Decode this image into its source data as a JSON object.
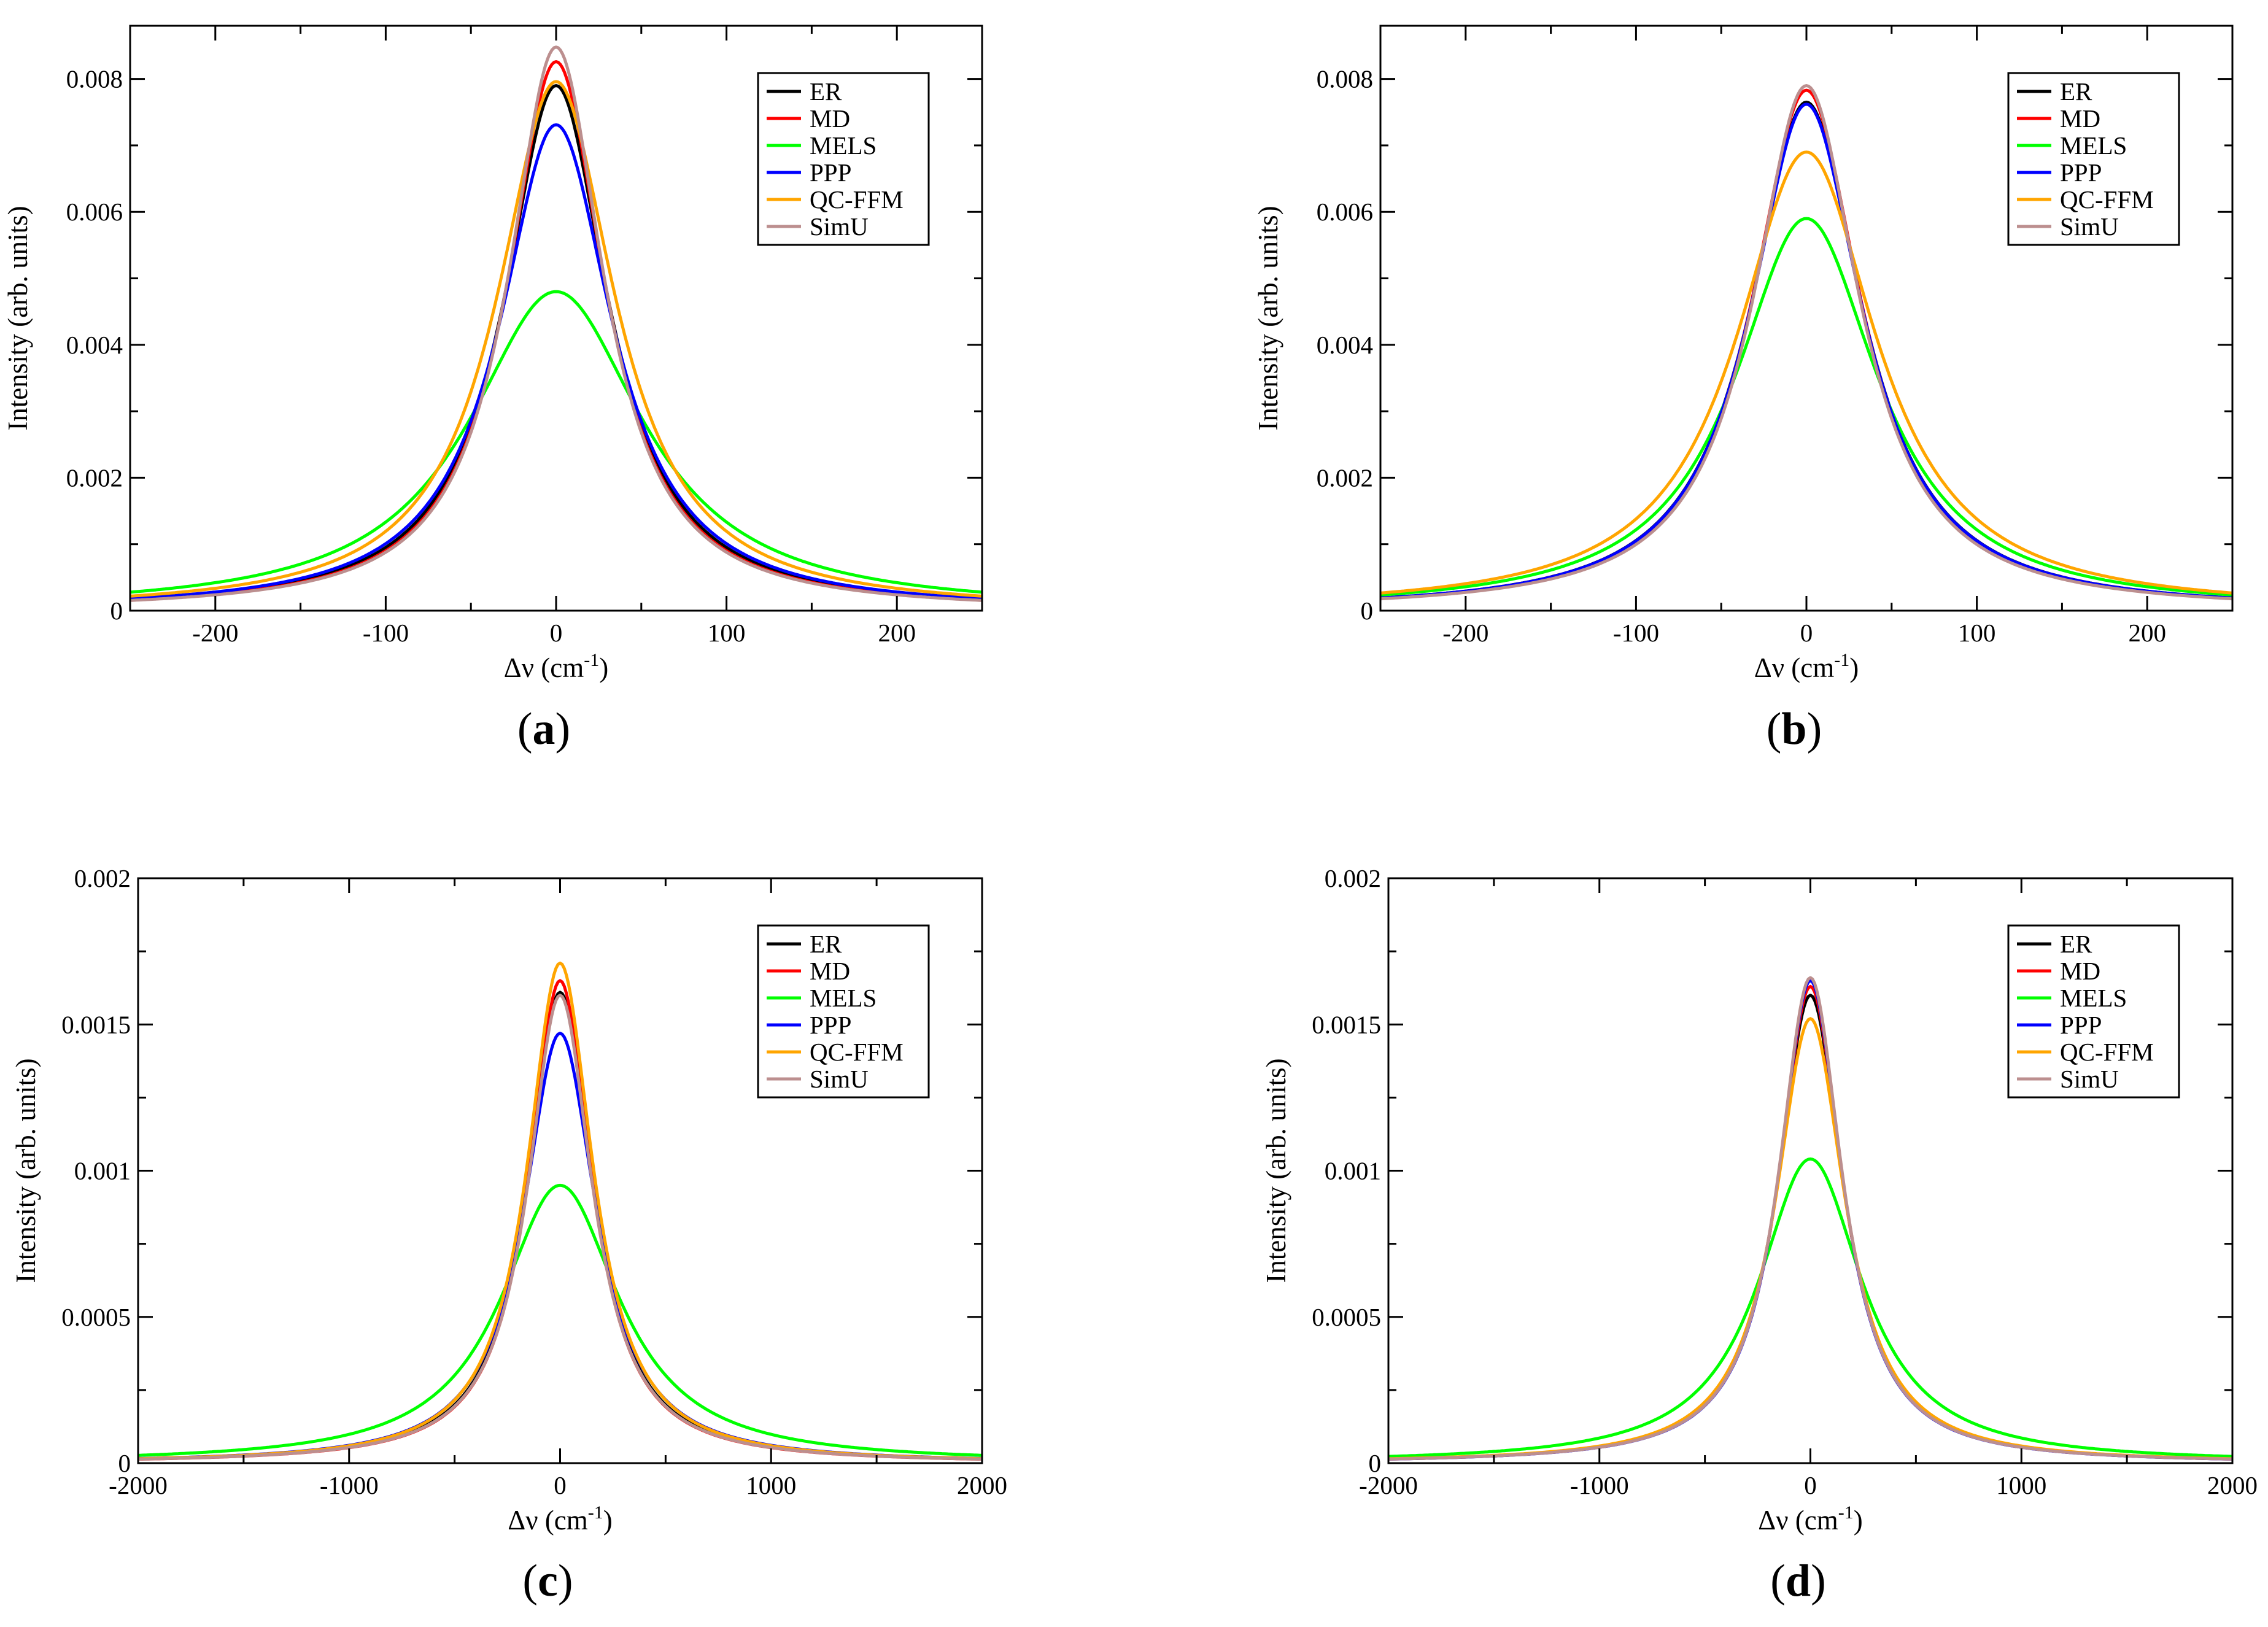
{
  "colors": {
    "ER": "#000000",
    "MD": "#ff0000",
    "MELS": "#00ff00",
    "PPP": "#0000ff",
    "QC-FFM": "#ffa500",
    "SimU": "#bc8f8f"
  },
  "chart_data": [
    {
      "id": "a",
      "type": "line",
      "caption_letter": "a",
      "xlabel_base": "Δν (cm",
      "xlabel_sup": "-1",
      "xlabel_close": ")",
      "ylabel": "Intensity (arb. units)",
      "xlim": [
        -250,
        250
      ],
      "ylim": [
        0,
        0.0088
      ],
      "xticks": [
        -200,
        -100,
        0,
        100,
        200
      ],
      "xtick_labels": [
        "-200",
        "-100",
        "0",
        "100",
        "200"
      ],
      "yticks": [
        0,
        0.002,
        0.004,
        0.006,
        0.008
      ],
      "ytick_labels": [
        "0",
        "0.002",
        "0.004",
        "0.006",
        "0.008"
      ],
      "legend_position": "top-right",
      "series": [
        {
          "name": "ER",
          "peak": 0.0079,
          "hwhm": 37
        },
        {
          "name": "MD",
          "peak": 0.00826,
          "hwhm": 35
        },
        {
          "name": "MELS",
          "peak": 0.0048,
          "hwhm": 62
        },
        {
          "name": "PPP",
          "peak": 0.00731,
          "hwhm": 40
        },
        {
          "name": "QC-FFM",
          "peak": 0.00796,
          "hwhm": 42
        },
        {
          "name": "SimU",
          "peak": 0.00848,
          "hwhm": 34
        }
      ]
    },
    {
      "id": "b",
      "type": "line",
      "caption_letter": "b",
      "xlabel_base": "Δν (cm",
      "xlabel_sup": "-1",
      "xlabel_close": ")",
      "ylabel": "Intensity (arb. units)",
      "xlim": [
        -250,
        250
      ],
      "ylim": [
        0,
        0.0088
      ],
      "xticks": [
        -200,
        -100,
        0,
        100,
        200
      ],
      "xtick_labels": [
        "-200",
        "-100",
        "0",
        "100",
        "200"
      ],
      "yticks": [
        0,
        0.002,
        0.004,
        0.006,
        0.008
      ],
      "ytick_labels": [
        "0",
        "0.002",
        "0.004",
        "0.006",
        "0.008"
      ],
      "legend_position": "top-right",
      "series": [
        {
          "name": "ER",
          "peak": 0.00765,
          "hwhm": 40
        },
        {
          "name": "MD",
          "peak": 0.00783,
          "hwhm": 39
        },
        {
          "name": "MELS",
          "peak": 0.0059,
          "hwhm": 51
        },
        {
          "name": "PPP",
          "peak": 0.00762,
          "hwhm": 40
        },
        {
          "name": "QC-FFM",
          "peak": 0.0069,
          "hwhm": 50
        },
        {
          "name": "SimU",
          "peak": 0.0079,
          "hwhm": 38
        }
      ]
    },
    {
      "id": "c",
      "type": "line",
      "caption_letter": "c",
      "xlabel_base": "Δν (cm",
      "xlabel_sup": "-1",
      "xlabel_close": ")",
      "ylabel": "Intensity (arb. units)",
      "xlim": [
        -2000,
        2000
      ],
      "ylim": [
        0,
        0.002
      ],
      "xticks": [
        -2000,
        -1000,
        0,
        1000,
        2000
      ],
      "xtick_labels": [
        "-2000",
        "-1000",
        "0",
        "1000",
        "2000"
      ],
      "yticks": [
        0,
        0.0005,
        0.001,
        0.0015,
        0.002
      ],
      "ytick_labels": [
        "0",
        "0.0005",
        "0.001",
        "0.0015",
        "0.002"
      ],
      "legend_position": "top-right",
      "series": [
        {
          "name": "ER",
          "peak": 0.00161,
          "hwhm": 188
        },
        {
          "name": "MD",
          "peak": 0.00165,
          "hwhm": 182
        },
        {
          "name": "MELS",
          "peak": 0.00095,
          "hwhm": 340
        },
        {
          "name": "PPP",
          "peak": 0.00147,
          "hwhm": 208
        },
        {
          "name": "QC-FFM",
          "peak": 0.00171,
          "hwhm": 190
        },
        {
          "name": "SimU",
          "peak": 0.0016,
          "hwhm": 186
        }
      ]
    },
    {
      "id": "d",
      "type": "line",
      "caption_letter": "d",
      "xlabel_base": "Δν (cm",
      "xlabel_sup": "-1",
      "xlabel_close": ")",
      "ylabel": "Intensity (arb. units)",
      "xlim": [
        -2000,
        2000
      ],
      "ylim": [
        0,
        0.002
      ],
      "xticks": [
        -2000,
        -1000,
        0,
        1000,
        2000
      ],
      "xtick_labels": [
        "-2000",
        "-1000",
        "0",
        "1000",
        "2000"
      ],
      "yticks": [
        0,
        0.0005,
        0.001,
        0.0015,
        0.002
      ],
      "ytick_labels": [
        "0",
        "0.0005",
        "0.001",
        "0.0015",
        "0.002"
      ],
      "legend_position": "top-right",
      "series": [
        {
          "name": "ER",
          "peak": 0.0016,
          "hwhm": 190
        },
        {
          "name": "MD",
          "peak": 0.00163,
          "hwhm": 186
        },
        {
          "name": "MELS",
          "peak": 0.00104,
          "hwhm": 300
        },
        {
          "name": "PPP",
          "peak": 0.00165,
          "hwhm": 184
        },
        {
          "name": "QC-FFM",
          "peak": 0.00152,
          "hwhm": 200
        },
        {
          "name": "SimU",
          "peak": 0.00166,
          "hwhm": 184
        }
      ]
    }
  ]
}
